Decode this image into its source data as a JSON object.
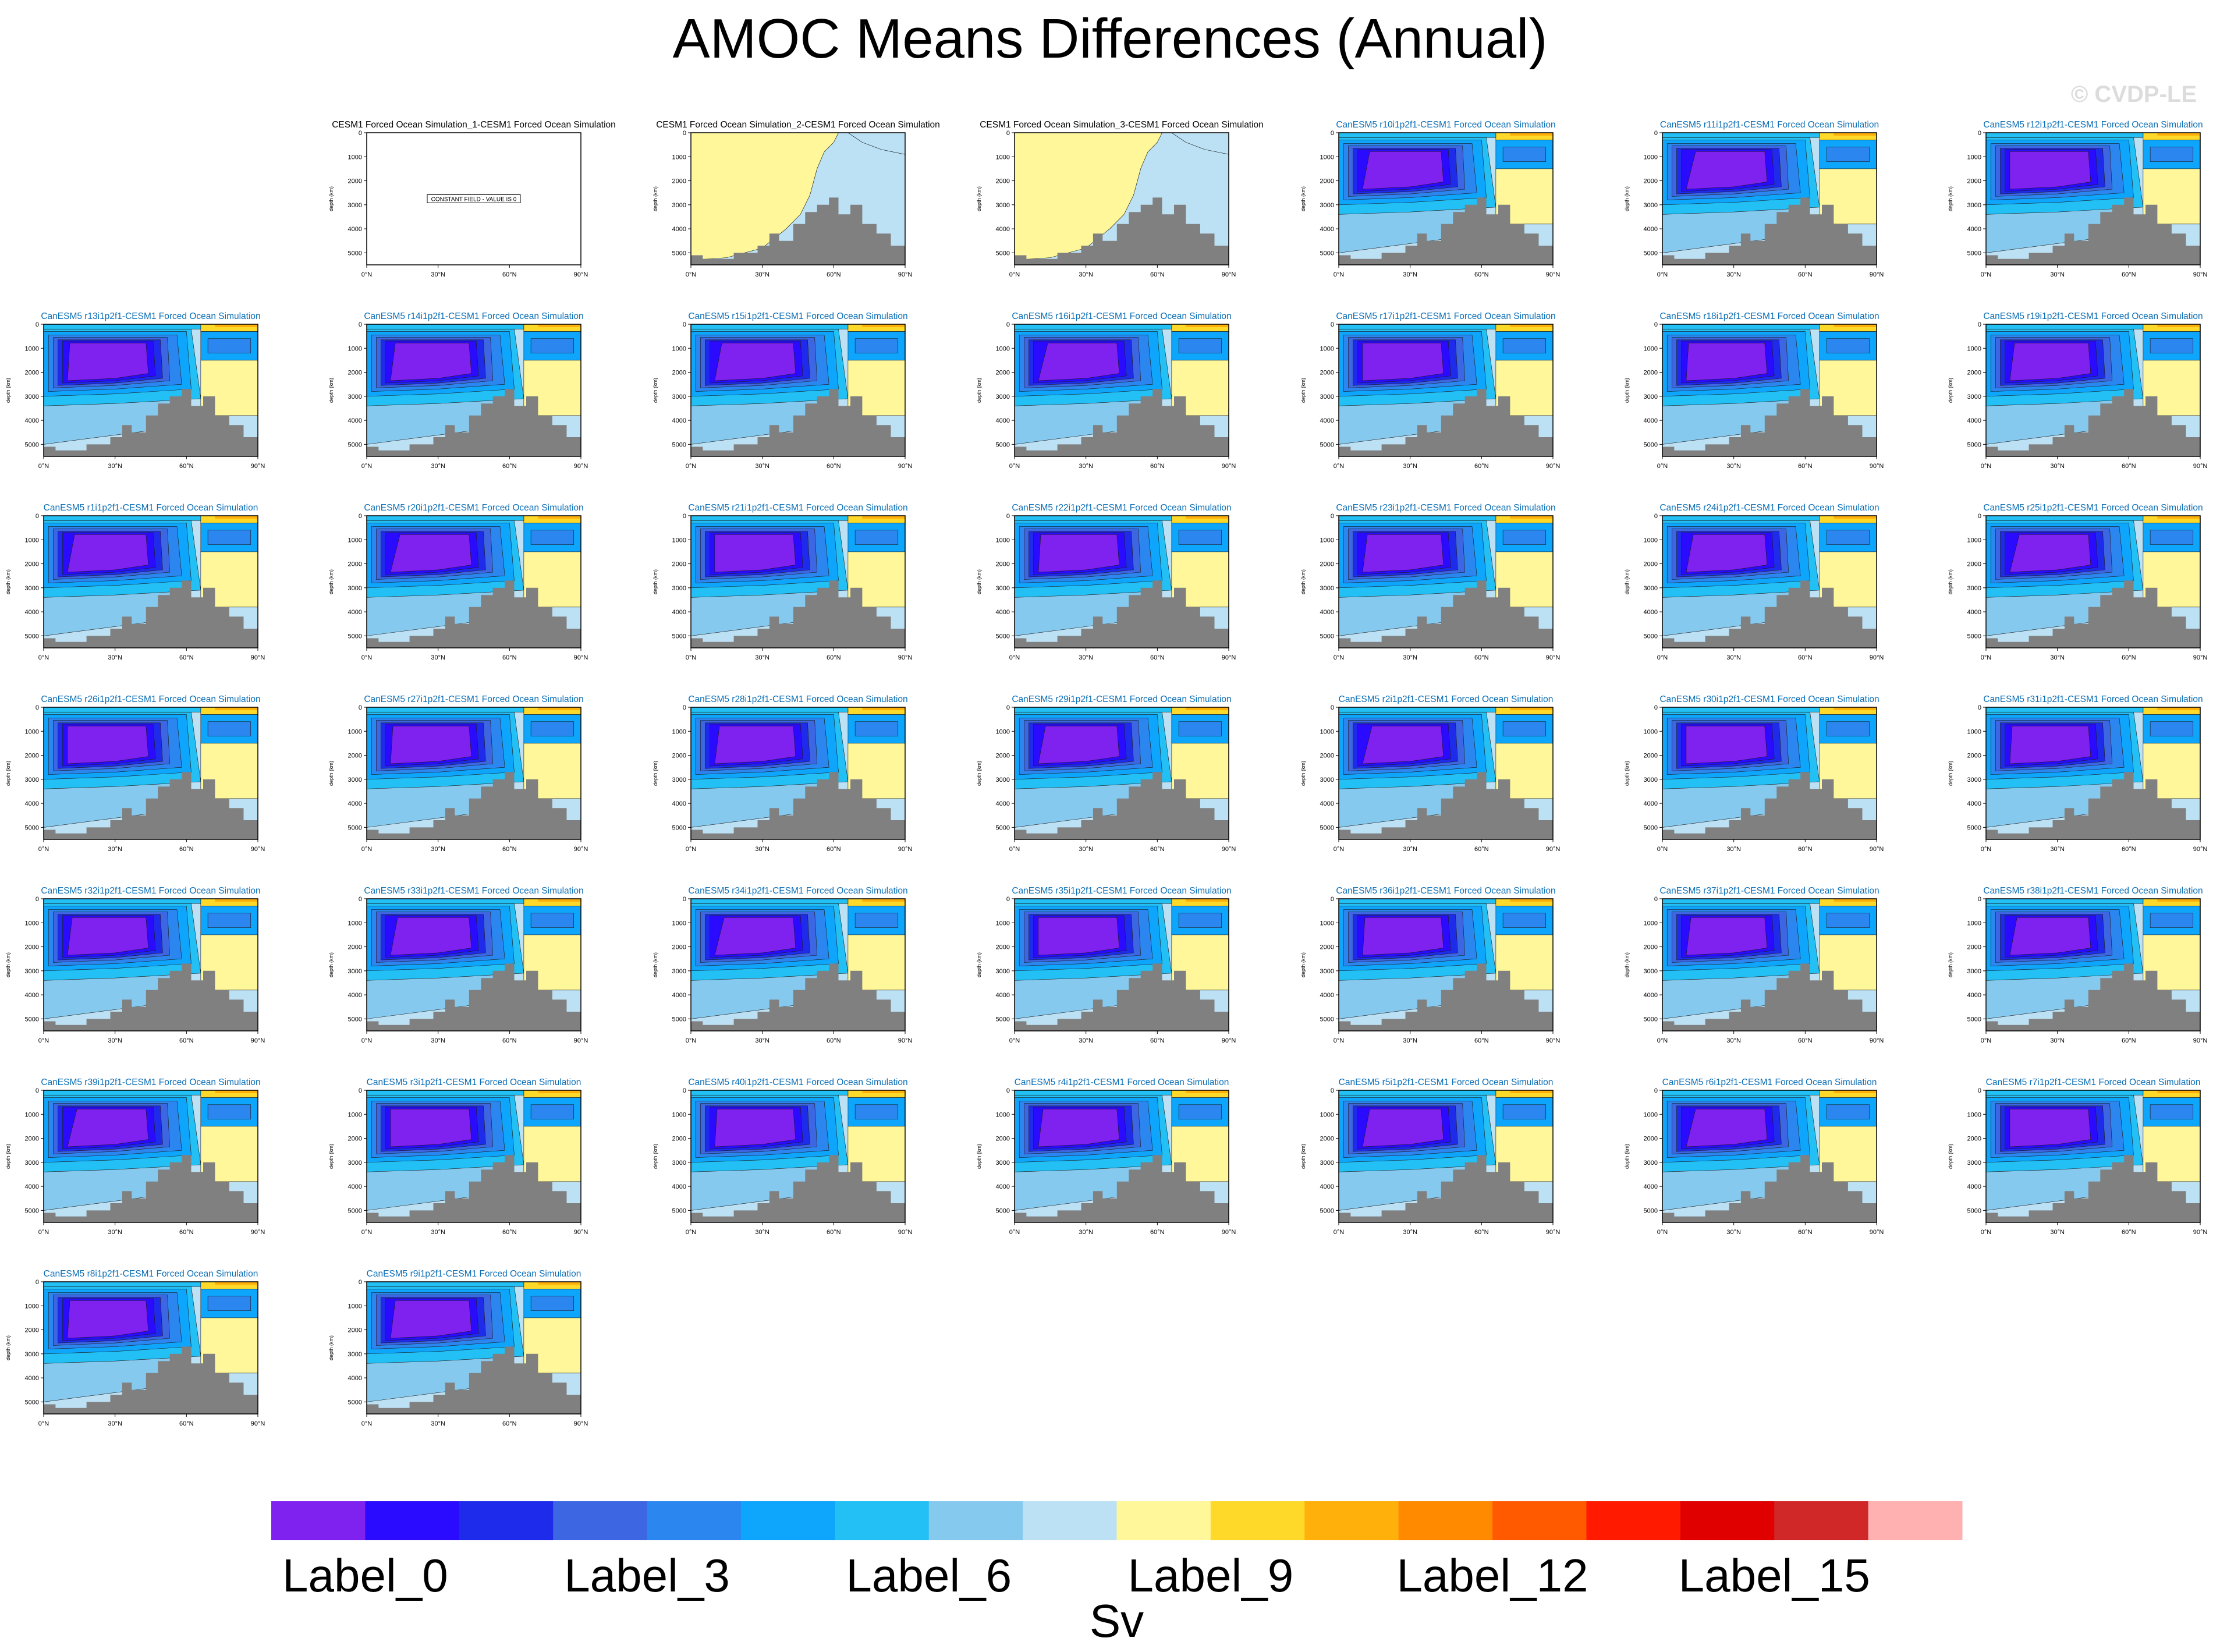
{
  "title": "AMOC Means Differences (Annual)",
  "watermark": "© CVDP-LE",
  "chart_data": {
    "type": "heatmap",
    "description_kind": "panel grid of latitude-depth contour maps",
    "x_axis": {
      "ticks": [
        "0°N",
        "30°N",
        "60°N",
        "90°N"
      ],
      "range": [
        0,
        90
      ]
    },
    "y_axis": {
      "label": "depth (km)",
      "ticks": [
        "0",
        "1000",
        "2000",
        "3000",
        "4000",
        "5000"
      ],
      "range": [
        0,
        5500
      ]
    },
    "panels": [
      {
        "title": "CESM1 Forced Ocean Simulation_1-CESM1 Forced Ocean Simulation",
        "style": "constant",
        "note": "CONSTANT FIELD - VALUE IS 0"
      },
      {
        "title": "CESM1 Forced Ocean Simulation_2-CESM1 Forced Ocean Simulation",
        "style": "cesm"
      },
      {
        "title": "CESM1 Forced Ocean Simulation_3-CESM1 Forced Ocean Simulation",
        "style": "cesm"
      },
      {
        "title": "CanESM5 r10i1p2f1-CESM1 Forced Ocean Simulation",
        "style": "canesm"
      },
      {
        "title": "CanESM5 r11i1p2f1-CESM1 Forced Ocean Simulation",
        "style": "canesm"
      },
      {
        "title": "CanESM5 r12i1p2f1-CESM1 Forced Ocean Simulation",
        "style": "canesm"
      },
      {
        "title": "CanESM5 r13i1p2f1-CESM1 Forced Ocean Simulation",
        "style": "canesm"
      },
      {
        "title": "CanESM5 r14i1p2f1-CESM1 Forced Ocean Simulation",
        "style": "canesm"
      },
      {
        "title": "CanESM5 r15i1p2f1-CESM1 Forced Ocean Simulation",
        "style": "canesm"
      },
      {
        "title": "CanESM5 r16i1p2f1-CESM1 Forced Ocean Simulation",
        "style": "canesm"
      },
      {
        "title": "CanESM5 r17i1p2f1-CESM1 Forced Ocean Simulation",
        "style": "canesm"
      },
      {
        "title": "CanESM5 r18i1p2f1-CESM1 Forced Ocean Simulation",
        "style": "canesm"
      },
      {
        "title": "CanESM5 r19i1p2f1-CESM1 Forced Ocean Simulation",
        "style": "canesm"
      },
      {
        "title": "CanESM5 r1i1p2f1-CESM1 Forced Ocean Simulation",
        "style": "canesm"
      },
      {
        "title": "CanESM5 r20i1p2f1-CESM1 Forced Ocean Simulation",
        "style": "canesm"
      },
      {
        "title": "CanESM5 r21i1p2f1-CESM1 Forced Ocean Simulation",
        "style": "canesm"
      },
      {
        "title": "CanESM5 r22i1p2f1-CESM1 Forced Ocean Simulation",
        "style": "canesm"
      },
      {
        "title": "CanESM5 r23i1p2f1-CESM1 Forced Ocean Simulation",
        "style": "canesm"
      },
      {
        "title": "CanESM5 r24i1p2f1-CESM1 Forced Ocean Simulation",
        "style": "canesm"
      },
      {
        "title": "CanESM5 r25i1p2f1-CESM1 Forced Ocean Simulation",
        "style": "canesm"
      },
      {
        "title": "CanESM5 r26i1p2f1-CESM1 Forced Ocean Simulation",
        "style": "canesm"
      },
      {
        "title": "CanESM5 r27i1p2f1-CESM1 Forced Ocean Simulation",
        "style": "canesm"
      },
      {
        "title": "CanESM5 r28i1p2f1-CESM1 Forced Ocean Simulation",
        "style": "canesm"
      },
      {
        "title": "CanESM5 r29i1p2f1-CESM1 Forced Ocean Simulation",
        "style": "canesm"
      },
      {
        "title": "CanESM5 r2i1p2f1-CESM1 Forced Ocean Simulation",
        "style": "canesm"
      },
      {
        "title": "CanESM5 r30i1p2f1-CESM1 Forced Ocean Simulation",
        "style": "canesm"
      },
      {
        "title": "CanESM5 r31i1p2f1-CESM1 Forced Ocean Simulation",
        "style": "canesm"
      },
      {
        "title": "CanESM5 r32i1p2f1-CESM1 Forced Ocean Simulation",
        "style": "canesm"
      },
      {
        "title": "CanESM5 r33i1p2f1-CESM1 Forced Ocean Simulation",
        "style": "canesm"
      },
      {
        "title": "CanESM5 r34i1p2f1-CESM1 Forced Ocean Simulation",
        "style": "canesm"
      },
      {
        "title": "CanESM5 r35i1p2f1-CESM1 Forced Ocean Simulation",
        "style": "canesm"
      },
      {
        "title": "CanESM5 r36i1p2f1-CESM1 Forced Ocean Simulation",
        "style": "canesm"
      },
      {
        "title": "CanESM5 r37i1p2f1-CESM1 Forced Ocean Simulation",
        "style": "canesm"
      },
      {
        "title": "CanESM5 r38i1p2f1-CESM1 Forced Ocean Simulation",
        "style": "canesm"
      },
      {
        "title": "CanESM5 r39i1p2f1-CESM1 Forced Ocean Simulation",
        "style": "canesm"
      },
      {
        "title": "CanESM5 r3i1p2f1-CESM1 Forced Ocean Simulation",
        "style": "canesm"
      },
      {
        "title": "CanESM5 r40i1p2f1-CESM1 Forced Ocean Simulation",
        "style": "canesm"
      },
      {
        "title": "CanESM5 r4i1p2f1-CESM1 Forced Ocean Simulation",
        "style": "canesm"
      },
      {
        "title": "CanESM5 r5i1p2f1-CESM1 Forced Ocean Simulation",
        "style": "canesm"
      },
      {
        "title": "CanESM5 r6i1p2f1-CESM1 Forced Ocean Simulation",
        "style": "canesm"
      },
      {
        "title": "CanESM5 r7i1p2f1-CESM1 Forced Ocean Simulation",
        "style": "canesm"
      },
      {
        "title": "CanESM5 r8i1p2f1-CESM1 Forced Ocean Simulation",
        "style": "canesm"
      },
      {
        "title": "CanESM5 r9i1p2f1-CESM1 Forced Ocean Simulation",
        "style": "canesm"
      }
    ],
    "colorbar": {
      "colors": [
        "#7f22f0",
        "#2b0bff",
        "#1f2bea",
        "#3c66e2",
        "#2b86f0",
        "#0ea5fc",
        "#22c0f5",
        "#86c9ee",
        "#bde1f4",
        "#fff79a",
        "#ffd92a",
        "#ffb00a",
        "#ff8a00",
        "#ff5a00",
        "#ff1a00",
        "#e00000",
        "#d02828",
        "#ffb0b0"
      ],
      "tick_labels": [
        "Label_0",
        "Label_3",
        "Label_6",
        "Label_9",
        "Label_12",
        "Label_15"
      ],
      "tick_indices": [
        1,
        4,
        7,
        10,
        13,
        16
      ],
      "units": "Sv"
    },
    "field_colors": {
      "bathymetry": "#808080",
      "cesm_yellow": "#fff79a",
      "cesm_light_blue": "#bde1f4",
      "title_model": "#0a6db5",
      "title_cesm": "#000000"
    }
  }
}
